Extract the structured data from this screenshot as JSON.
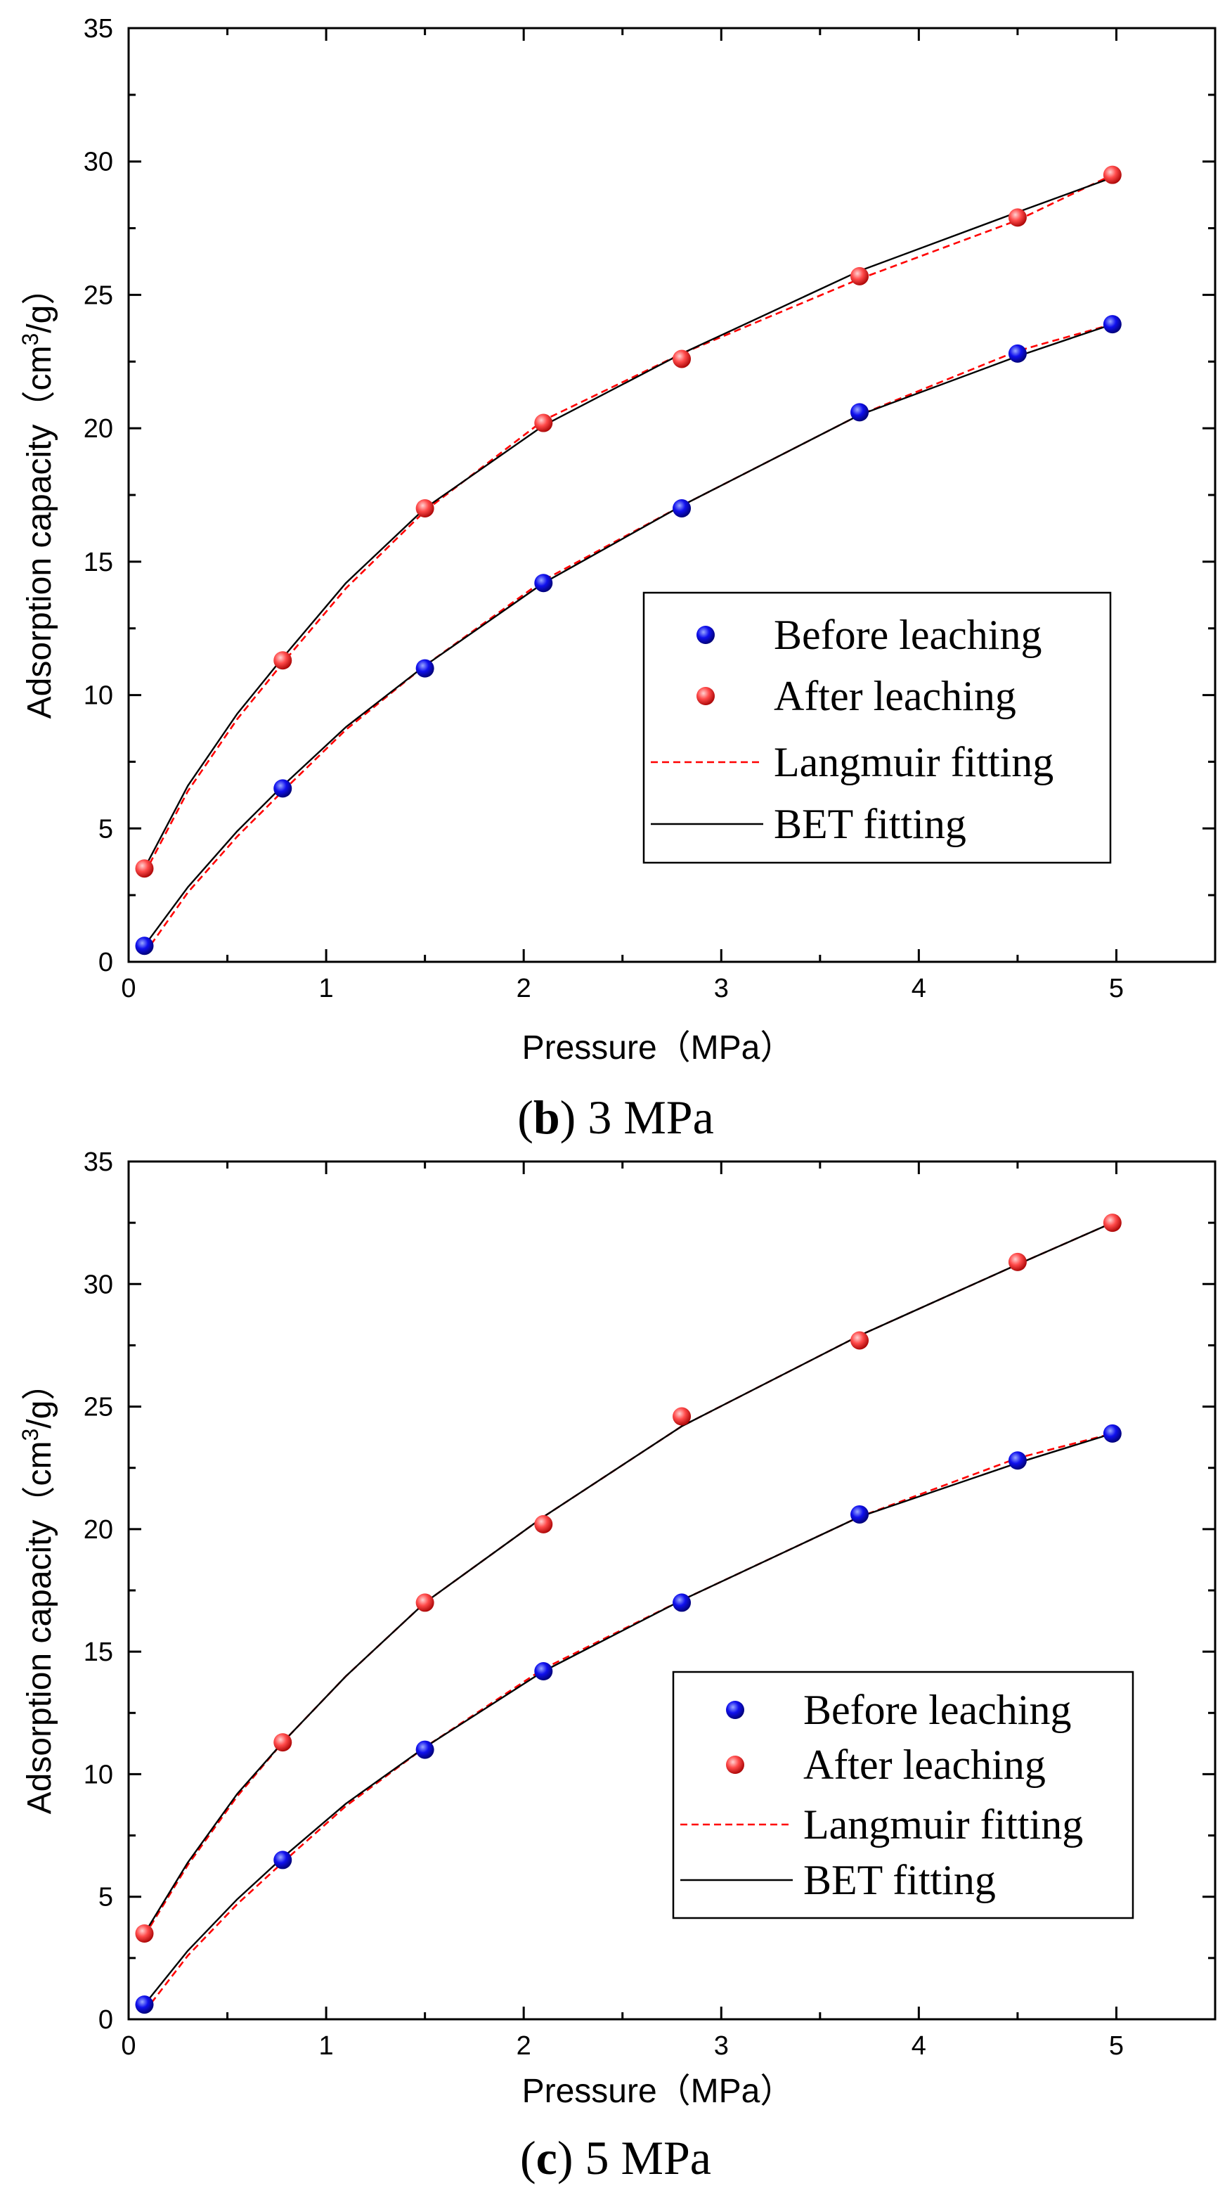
{
  "chart_data": [
    {
      "type": "scatter",
      "panel_label": "b",
      "caption_rest": " 3 MPa",
      "xlabel": "Pressure（MPa）",
      "ylabel_prefix": "Adsorption capacity（cm",
      "ylabel_sup": "3",
      "ylabel_suffix": "/g）",
      "xlim": [
        0,
        5.5
      ],
      "ylim": [
        0,
        35
      ],
      "xticks": [
        0,
        1,
        2,
        3,
        4,
        5
      ],
      "yticks": [
        0,
        5,
        10,
        15,
        20,
        25,
        30,
        35
      ],
      "legend_position": "lower-right",
      "series": [
        {
          "name": "Before leaching",
          "kind": "points",
          "color": "#0000ff",
          "x": [
            0.08,
            0.78,
            1.5,
            2.1,
            2.8,
            3.7,
            4.5,
            4.98
          ],
          "y": [
            0.6,
            6.5,
            11.0,
            14.2,
            17.0,
            20.6,
            22.8,
            23.9
          ]
        },
        {
          "name": "After leaching",
          "kind": "points",
          "color": "#ff3333",
          "x": [
            0.08,
            0.78,
            1.5,
            2.1,
            2.8,
            3.7,
            4.5,
            4.98
          ],
          "y": [
            3.5,
            11.3,
            17.0,
            20.2,
            22.6,
            25.7,
            27.9,
            29.5
          ]
        },
        {
          "name": "Langmuir fitting",
          "kind": "dashed-line",
          "color": "#ff0000"
        },
        {
          "name": "BET fitting",
          "kind": "solid-line",
          "color": "#000000"
        }
      ],
      "fit_curves": [
        {
          "style": "dashed",
          "color": "#ff0000",
          "x": [
            0.08,
            0.3,
            0.55,
            0.78,
            1.1,
            1.5,
            2.1,
            2.8,
            3.7,
            4.5,
            4.98
          ],
          "y": [
            0.3,
            2.6,
            4.7,
            6.4,
            8.7,
            11.1,
            14.3,
            17.1,
            20.5,
            22.9,
            23.9
          ]
        },
        {
          "style": "solid",
          "color": "#000000",
          "x": [
            0.08,
            0.3,
            0.55,
            0.78,
            1.1,
            1.5,
            2.1,
            2.8,
            3.7,
            4.5,
            4.98
          ],
          "y": [
            0.6,
            2.8,
            4.9,
            6.6,
            8.8,
            11.1,
            14.2,
            17.1,
            20.5,
            22.7,
            23.9
          ]
        },
        {
          "style": "dashed",
          "color": "#ff0000",
          "x": [
            0.08,
            0.3,
            0.55,
            0.78,
            1.1,
            1.5,
            2.1,
            2.8,
            3.7,
            4.5,
            4.98
          ],
          "y": [
            3.3,
            6.4,
            9.1,
            11.2,
            14.0,
            16.9,
            20.3,
            22.8,
            25.6,
            27.8,
            29.5
          ]
        },
        {
          "style": "solid",
          "color": "#000000",
          "x": [
            0.08,
            0.3,
            0.55,
            0.78,
            1.1,
            1.5,
            2.1,
            2.8,
            3.7,
            4.5,
            4.98
          ],
          "y": [
            3.5,
            6.6,
            9.3,
            11.4,
            14.2,
            17.0,
            20.1,
            22.8,
            25.9,
            28.1,
            29.4
          ]
        }
      ]
    },
    {
      "type": "scatter",
      "panel_label": "c",
      "caption_rest": " 5 MPa",
      "xlabel": "Pressure（MPa）",
      "ylabel_prefix": "Adsorption capacity（cm",
      "ylabel_sup": "3",
      "ylabel_suffix": "/g）",
      "xlim": [
        0,
        5.5
      ],
      "ylim": [
        0,
        35
      ],
      "xticks": [
        0,
        1,
        2,
        3,
        4,
        5
      ],
      "yticks": [
        0,
        5,
        10,
        15,
        20,
        25,
        30,
        35
      ],
      "legend_position": "lower-right",
      "series": [
        {
          "name": "Before leaching",
          "kind": "points",
          "color": "#0000ff",
          "x": [
            0.08,
            0.78,
            1.5,
            2.1,
            2.8,
            3.7,
            4.5,
            4.98
          ],
          "y": [
            0.6,
            6.5,
            11.0,
            14.2,
            17.0,
            20.6,
            22.8,
            23.9
          ]
        },
        {
          "name": "After leaching",
          "kind": "points",
          "color": "#ff3333",
          "x": [
            0.08,
            0.78,
            1.5,
            2.1,
            2.8,
            3.7,
            4.5,
            4.98
          ],
          "y": [
            3.5,
            11.3,
            17.0,
            20.2,
            24.6,
            27.7,
            30.9,
            32.5
          ]
        },
        {
          "name": "Langmuir fitting",
          "kind": "dashed-line",
          "color": "#ff0000"
        },
        {
          "name": "BET fitting",
          "kind": "solid-line",
          "color": "#000000"
        }
      ],
      "fit_curves": [
        {
          "style": "dashed",
          "color": "#ff0000",
          "x": [
            0.08,
            0.3,
            0.55,
            0.78,
            1.1,
            1.5,
            2.1,
            2.8,
            3.7,
            4.5,
            4.98
          ],
          "y": [
            0.3,
            2.6,
            4.7,
            6.4,
            8.7,
            11.1,
            14.3,
            17.1,
            20.5,
            22.9,
            23.9
          ]
        },
        {
          "style": "solid",
          "color": "#000000",
          "x": [
            0.08,
            0.3,
            0.55,
            0.78,
            1.1,
            1.5,
            2.1,
            2.8,
            3.7,
            4.5,
            4.98
          ],
          "y": [
            0.6,
            2.8,
            4.9,
            6.6,
            8.8,
            11.1,
            14.2,
            17.1,
            20.5,
            22.7,
            23.9
          ]
        },
        {
          "style": "dashed",
          "color": "#ff0000",
          "x": [
            0.08,
            0.3,
            0.55,
            0.78,
            1.1,
            1.5,
            2.1,
            2.8,
            3.7,
            4.5,
            4.98
          ],
          "y": [
            3.4,
            6.3,
            9.1,
            11.3,
            14.0,
            17.0,
            20.5,
            24.2,
            27.9,
            30.8,
            32.5
          ]
        },
        {
          "style": "solid",
          "color": "#000000",
          "x": [
            0.08,
            0.3,
            0.55,
            0.78,
            1.1,
            1.5,
            2.1,
            2.8,
            3.7,
            4.5,
            4.98
          ],
          "y": [
            3.5,
            6.4,
            9.2,
            11.3,
            14.0,
            17.0,
            20.5,
            24.2,
            27.9,
            30.8,
            32.5
          ]
        }
      ]
    }
  ]
}
